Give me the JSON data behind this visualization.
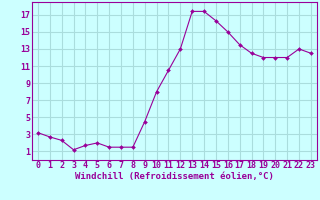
{
  "x": [
    0,
    1,
    2,
    3,
    4,
    5,
    6,
    7,
    8,
    9,
    10,
    11,
    12,
    13,
    14,
    15,
    16,
    17,
    18,
    19,
    20,
    21,
    22,
    23
  ],
  "y": [
    3.2,
    2.7,
    2.3,
    1.2,
    1.7,
    2.0,
    1.5,
    1.5,
    1.5,
    4.5,
    8.0,
    10.5,
    13.0,
    17.4,
    17.4,
    16.3,
    15.0,
    13.5,
    12.5,
    12.0,
    12.0,
    12.0,
    13.0,
    12.5
  ],
  "line_color": "#990099",
  "marker": "D",
  "marker_size": 2,
  "background_color": "#ccffff",
  "grid_color": "#aadddd",
  "xlabel": "Windchill (Refroidissement éolien,°C)",
  "xlabel_color": "#990099",
  "tick_color": "#990099",
  "xlabel_fontsize": 6.5,
  "tick_fontsize": 6,
  "xlim": [
    -0.5,
    23.5
  ],
  "ylim": [
    0,
    18.5
  ],
  "yticks": [
    1,
    3,
    5,
    7,
    9,
    11,
    13,
    15,
    17
  ],
  "xticks": [
    0,
    1,
    2,
    3,
    4,
    5,
    6,
    7,
    8,
    9,
    10,
    11,
    12,
    13,
    14,
    15,
    16,
    17,
    18,
    19,
    20,
    21,
    22,
    23
  ]
}
